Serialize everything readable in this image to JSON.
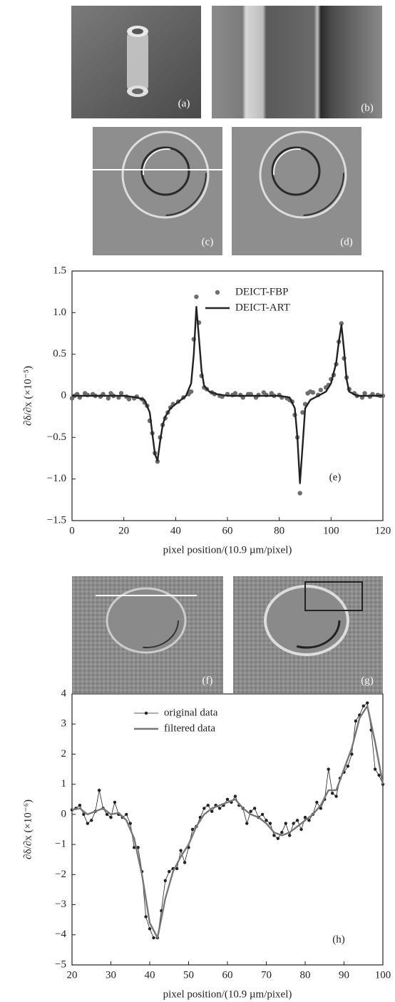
{
  "panel_labels": [
    "(a)",
    "(b)",
    "(c)",
    "(d)",
    "(f)",
    "(g)"
  ],
  "chart_data": [
    {
      "type": "scatter",
      "annotation": "(e)",
      "x_label": "pixel position/(10.9 µm/pixel)",
      "y_label": "∂δ/∂x (×10⁻⁵)",
      "xlim": [
        0,
        120
      ],
      "xticks": [
        0,
        20,
        40,
        60,
        80,
        100,
        120
      ],
      "ylim": [
        -1.5,
        1.5
      ],
      "yticks": [
        {
          "value": -1.5,
          "label": "−1.5"
        },
        {
          "value": -1,
          "label": "−1.0"
        },
        {
          "value": -0.5,
          "label": "−0.5"
        },
        0,
        {
          "value": 0.5,
          "label": "0.5"
        },
        {
          "value": 1,
          "label": "1.0"
        },
        {
          "value": 1.5,
          "label": "1.5"
        }
      ],
      "legend": "upper right",
      "series": [
        {
          "name": "DEICT-FBP",
          "color": "#6e6e6e",
          "mode": "markers",
          "x": [
            0,
            1,
            2,
            3,
            5,
            6,
            8,
            9,
            11,
            12,
            14,
            15,
            16,
            18,
            19,
            21,
            22,
            24,
            25,
            27,
            28,
            29,
            30,
            31,
            32,
            33,
            34,
            35,
            36,
            37,
            38,
            39,
            41,
            43,
            45,
            46,
            47,
            48,
            49,
            50,
            51,
            52,
            54,
            55,
            57,
            58,
            60,
            62,
            63,
            65,
            66,
            68,
            69,
            71,
            72,
            74,
            75,
            77,
            78,
            80,
            81,
            83,
            84,
            85,
            86,
            87,
            88,
            89,
            90,
            91,
            92,
            93,
            95,
            96,
            98,
            99,
            100,
            101,
            102,
            103,
            104,
            105,
            106,
            107,
            109,
            110,
            112,
            113,
            115,
            116,
            118,
            119,
            120
          ],
          "values": [
            -0.03,
            0,
            0.02,
            -0.02,
            0.03,
            0.01,
            0.02,
            0,
            -0.01,
            0.02,
            -0.03,
            0.03,
            0,
            -0.02,
            0.03,
            -0.01,
            -0.04,
            -0.03,
            -0.01,
            -0.04,
            -0.08,
            -0.12,
            -0.3,
            -0.45,
            -0.69,
            -0.79,
            -0.5,
            -0.35,
            -0.27,
            -0.2,
            -0.14,
            -0.1,
            -0.07,
            -0.02,
            0.02,
            0.05,
            0.68,
            1.19,
            0.88,
            0.24,
            0.1,
            0.08,
            0.04,
            0.02,
            0,
            -0.01,
            0.02,
            0.01,
            0.03,
            0.01,
            -0.02,
            0.02,
            0.02,
            -0.02,
            0.01,
            0.04,
            0.01,
            0.03,
            0,
            0.01,
            -0.02,
            -0.03,
            -0.05,
            -0.07,
            -0.23,
            -0.5,
            -1.17,
            -0.2,
            -0.1,
            0.03,
            0.05,
            0.04,
            0.01,
            0.07,
            0.1,
            0.13,
            0.2,
            0.25,
            0.38,
            0.65,
            0.87,
            0.45,
            0.22,
            0.08,
            0.03,
            0,
            -0.02,
            0.03,
            -0.01,
            0.02,
            0.01,
            0,
            0
          ]
        },
        {
          "name": "DEICT-ART",
          "color": "#222222",
          "mode": "lines",
          "x": [
            0,
            5,
            10,
            15,
            20,
            25,
            28,
            30,
            31,
            32,
            33,
            34,
            35,
            36,
            38,
            40,
            42,
            44,
            46,
            47,
            48,
            49,
            50,
            51,
            53,
            56,
            60,
            70,
            80,
            84,
            86,
            87,
            88,
            89,
            90,
            92,
            95,
            98,
            100,
            102,
            103,
            104,
            105,
            106,
            107,
            110,
            115,
            120
          ],
          "values": [
            0,
            0,
            0,
            0,
            0,
            -0.02,
            -0.05,
            -0.2,
            -0.45,
            -0.7,
            -0.78,
            -0.55,
            -0.35,
            -0.25,
            -0.15,
            -0.1,
            -0.05,
            0,
            0.15,
            0.5,
            1.07,
            0.7,
            0.3,
            0.12,
            0.05,
            0.02,
            0,
            0,
            0,
            -0.02,
            -0.15,
            -0.5,
            -1.05,
            -0.6,
            -0.15,
            -0.05,
            0,
            0.05,
            0.15,
            0.4,
            0.65,
            0.85,
            0.55,
            0.2,
            0.05,
            0,
            0,
            0
          ]
        }
      ]
    },
    {
      "type": "line",
      "annotation": "(h)",
      "x_label": "pixel position/(10.9 µm/pixel)",
      "y_label": "∂δ/∂x (×10⁻⁶)",
      "xlim": [
        20,
        100
      ],
      "xticks": [
        20,
        30,
        40,
        50,
        60,
        70,
        80,
        90,
        100
      ],
      "ylim": [
        -5,
        4
      ],
      "yticks": [
        {
          "value": -5,
          "label": "−5"
        },
        {
          "value": -4,
          "label": "−4"
        },
        {
          "value": -3,
          "label": "−3"
        },
        {
          "value": -2,
          "label": "−2"
        },
        {
          "value": -1,
          "label": "−1"
        },
        0,
        1,
        2,
        3,
        4
      ],
      "legend": "upper left",
      "series": [
        {
          "name": "original data",
          "color": "#222222",
          "mode": "lines+markers",
          "x": [
            20,
            21,
            22,
            23,
            24,
            25,
            26,
            27,
            28,
            29,
            30,
            31,
            32,
            33,
            34,
            35,
            36,
            37,
            38,
            39,
            40,
            41,
            42,
            43,
            44,
            45,
            46,
            47,
            48,
            49,
            50,
            51,
            52,
            53,
            54,
            55,
            56,
            57,
            58,
            59,
            60,
            61,
            62,
            63,
            64,
            65,
            66,
            67,
            68,
            69,
            70,
            71,
            72,
            73,
            74,
            75,
            76,
            77,
            78,
            79,
            80,
            81,
            82,
            83,
            84,
            85,
            86,
            87,
            88,
            89,
            90,
            91,
            92,
            93,
            94,
            95,
            96,
            97,
            98,
            99,
            100
          ],
          "values": [
            0.15,
            0.2,
            0.3,
            0,
            -0.3,
            -0.2,
            0.1,
            0.8,
            0.2,
            0,
            -0.1,
            0.4,
            0,
            -0.1,
            0,
            -0.3,
            -1.1,
            -1.1,
            -1.9,
            -3.4,
            -3.8,
            -4.1,
            -4.1,
            -3.2,
            -2.2,
            -1.9,
            -1.8,
            -1.8,
            -1.2,
            -1.6,
            -1.1,
            -0.5,
            -0.4,
            -0.1,
            0.2,
            0.3,
            0.1,
            0.3,
            0.2,
            0.3,
            0.5,
            0.4,
            0.6,
            0.3,
            0.2,
            -0.3,
            0.1,
            0.2,
            -0.1,
            0,
            -0.2,
            -0.3,
            -0.7,
            -0.8,
            -0.6,
            -0.3,
            -0.7,
            -0.3,
            -0.2,
            -0.5,
            -0.1,
            -0.2,
            0,
            0.4,
            0.2,
            0.5,
            1.5,
            0.7,
            0.6,
            1.2,
            1.4,
            1.6,
            2,
            3.1,
            3.3,
            3.6,
            3.7,
            2.8,
            1.5,
            1.3,
            1
          ]
        },
        {
          "name": "filtered data",
          "color": "#777777",
          "mode": "lines",
          "x": [
            20,
            22,
            24,
            26,
            28,
            30,
            32,
            34,
            36,
            38,
            40,
            42,
            44,
            46,
            48,
            50,
            52,
            54,
            56,
            58,
            60,
            62,
            64,
            66,
            68,
            70,
            72,
            74,
            76,
            78,
            80,
            82,
            84,
            86,
            88,
            90,
            92,
            94,
            96,
            98,
            100
          ],
          "values": [
            0.15,
            0.2,
            0,
            0.1,
            0.2,
            0,
            0.05,
            -0.2,
            -0.8,
            -2,
            -3.6,
            -4.1,
            -2.8,
            -1.9,
            -1.4,
            -1,
            -0.4,
            0,
            0.2,
            0.3,
            0.4,
            0.5,
            0.2,
            0,
            -0.1,
            -0.3,
            -0.6,
            -0.7,
            -0.6,
            -0.4,
            -0.2,
            0,
            0.3,
            0.8,
            0.8,
            1.5,
            2.2,
            3.2,
            3.6,
            2.4,
            1
          ]
        }
      ]
    }
  ]
}
